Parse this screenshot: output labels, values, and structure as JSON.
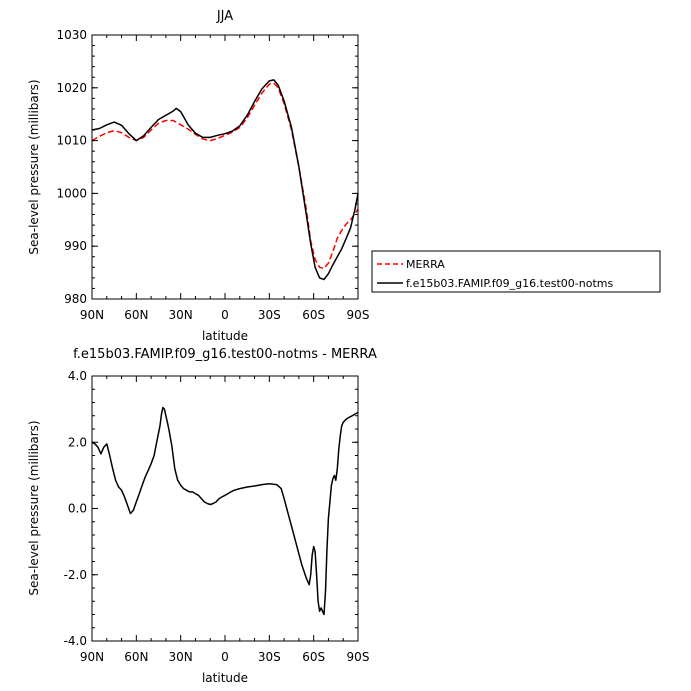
{
  "chart_data": [
    {
      "type": "line",
      "title": "JJA",
      "xlabel": "latitude",
      "ylabel": "Sea-level pressure (millibars)",
      "xlim": [
        90,
        -90
      ],
      "ylim": [
        980,
        1030
      ],
      "x_ticks": [
        90,
        60,
        30,
        0,
        -30,
        -60,
        -90
      ],
      "x_tick_labels": [
        "90N",
        "60N",
        "30N",
        "0",
        "30S",
        "60S",
        "90S"
      ],
      "y_ticks": [
        980,
        990,
        1000,
        1010,
        1020,
        1030
      ],
      "y_tick_labels": [
        "980",
        "990",
        "1000",
        "1010",
        "1020",
        "1030"
      ],
      "legend_position": "right",
      "series": [
        {
          "name": "MERRA",
          "color": "#ff0000",
          "dash": "dashed",
          "points": [
            [
              90,
              1010.0
            ],
            [
              85,
              1010.8
            ],
            [
              80,
              1011.5
            ],
            [
              75,
              1011.9
            ],
            [
              70,
              1011.5
            ],
            [
              65,
              1010.6
            ],
            [
              60,
              1010.0
            ],
            [
              55,
              1010.6
            ],
            [
              50,
              1012.0
            ],
            [
              45,
              1013.3
            ],
            [
              40,
              1013.8
            ],
            [
              35,
              1013.8
            ],
            [
              30,
              1013.0
            ],
            [
              25,
              1012.2
            ],
            [
              20,
              1011.2
            ],
            [
              15,
              1010.3
            ],
            [
              10,
              1010.0
            ],
            [
              5,
              1010.4
            ],
            [
              0,
              1011.0
            ],
            [
              -5,
              1011.6
            ],
            [
              -10,
              1012.5
            ],
            [
              -15,
              1014.3
            ],
            [
              -20,
              1016.7
            ],
            [
              -25,
              1019.0
            ],
            [
              -30,
              1020.7
            ],
            [
              -33,
              1020.9
            ],
            [
              -36,
              1020.0
            ],
            [
              -40,
              1017.0
            ],
            [
              -45,
              1012.0
            ],
            [
              -50,
              1005.0
            ],
            [
              -55,
              997.0
            ],
            [
              -58,
              991.0
            ],
            [
              -61,
              987.5
            ],
            [
              -64,
              986.0
            ],
            [
              -67,
              985.8
            ],
            [
              -70,
              986.8
            ],
            [
              -73,
              989.0
            ],
            [
              -76,
              991.5
            ],
            [
              -79,
              993.0
            ],
            [
              -82,
              994.2
            ],
            [
              -85,
              995.0
            ],
            [
              -88,
              996.2
            ],
            [
              -90,
              997.0
            ]
          ]
        },
        {
          "name": "f.e15b03.FAMIP.f09_g16.test00-notms",
          "color": "#000000",
          "dash": "solid",
          "points": [
            [
              90,
              1012.0
            ],
            [
              85,
              1012.3
            ],
            [
              80,
              1013.0
            ],
            [
              75,
              1013.5
            ],
            [
              70,
              1012.9
            ],
            [
              65,
              1011.3
            ],
            [
              60,
              1010.0
            ],
            [
              55,
              1010.9
            ],
            [
              50,
              1012.5
            ],
            [
              45,
              1014.0
            ],
            [
              40,
              1014.8
            ],
            [
              35,
              1015.6
            ],
            [
              33,
              1016.1
            ],
            [
              30,
              1015.5
            ],
            [
              25,
              1013.0
            ],
            [
              20,
              1011.4
            ],
            [
              15,
              1010.6
            ],
            [
              10,
              1010.6
            ],
            [
              5,
              1011.0
            ],
            [
              0,
              1011.3
            ],
            [
              -5,
              1011.8
            ],
            [
              -10,
              1012.8
            ],
            [
              -15,
              1014.8
            ],
            [
              -20,
              1017.4
            ],
            [
              -25,
              1019.8
            ],
            [
              -30,
              1021.3
            ],
            [
              -33,
              1021.5
            ],
            [
              -36,
              1020.5
            ],
            [
              -40,
              1017.5
            ],
            [
              -45,
              1012.5
            ],
            [
              -50,
              1005.0
            ],
            [
              -55,
              996.0
            ],
            [
              -58,
              990.5
            ],
            [
              -61,
              986.0
            ],
            [
              -64,
              984.0
            ],
            [
              -67,
              983.7
            ],
            [
              -70,
              984.8
            ],
            [
              -73,
              986.5
            ],
            [
              -76,
              988.0
            ],
            [
              -79,
              989.5
            ],
            [
              -82,
              991.5
            ],
            [
              -85,
              993.5
            ],
            [
              -88,
              997.0
            ],
            [
              -90,
              1000.0
            ]
          ]
        }
      ]
    },
    {
      "type": "line",
      "title": "f.e15b03.FAMIP.f09_g16.test00-notms - MERRA",
      "xlabel": "latitude",
      "ylabel": "Sea-level pressure (millibars)",
      "xlim": [
        90,
        -90
      ],
      "ylim": [
        -4.0,
        4.0
      ],
      "x_ticks": [
        90,
        60,
        30,
        0,
        -30,
        -60,
        -90
      ],
      "x_tick_labels": [
        "90N",
        "60N",
        "30N",
        "0",
        "30S",
        "60S",
        "90S"
      ],
      "y_ticks": [
        -4.0,
        -2.0,
        0.0,
        2.0,
        4.0
      ],
      "y_tick_labels": [
        "-4.0",
        "-2.0",
        "0.0",
        "2.0",
        "4.0"
      ],
      "series": [
        {
          "color": "#000000",
          "dash": "solid",
          "points": [
            [
              90,
              2.0
            ],
            [
              88,
              1.95
            ],
            [
              86,
              1.85
            ],
            [
              84,
              1.65
            ],
            [
              82,
              1.85
            ],
            [
              80,
              1.95
            ],
            [
              78,
              1.6
            ],
            [
              76,
              1.2
            ],
            [
              74,
              0.85
            ],
            [
              72,
              0.65
            ],
            [
              70,
              0.55
            ],
            [
              68,
              0.35
            ],
            [
              66,
              0.1
            ],
            [
              64,
              -0.15
            ],
            [
              62,
              -0.05
            ],
            [
              60,
              0.2
            ],
            [
              58,
              0.45
            ],
            [
              56,
              0.7
            ],
            [
              54,
              0.95
            ],
            [
              52,
              1.15
            ],
            [
              50,
              1.35
            ],
            [
              48,
              1.6
            ],
            [
              46,
              2.05
            ],
            [
              44,
              2.5
            ],
            [
              43,
              2.85
            ],
            [
              42,
              3.05
            ],
            [
              41,
              3.0
            ],
            [
              40,
              2.8
            ],
            [
              39,
              2.6
            ],
            [
              38,
              2.4
            ],
            [
              36,
              1.9
            ],
            [
              34,
              1.2
            ],
            [
              32,
              0.85
            ],
            [
              30,
              0.7
            ],
            [
              28,
              0.6
            ],
            [
              26,
              0.55
            ],
            [
              24,
              0.5
            ],
            [
              22,
              0.5
            ],
            [
              20,
              0.45
            ],
            [
              18,
              0.4
            ],
            [
              16,
              0.3
            ],
            [
              14,
              0.2
            ],
            [
              12,
              0.15
            ],
            [
              10,
              0.12
            ],
            [
              8,
              0.15
            ],
            [
              6,
              0.2
            ],
            [
              4,
              0.3
            ],
            [
              2,
              0.35
            ],
            [
              0,
              0.4
            ],
            [
              -2,
              0.45
            ],
            [
              -4,
              0.5
            ],
            [
              -6,
              0.55
            ],
            [
              -10,
              0.6
            ],
            [
              -15,
              0.65
            ],
            [
              -20,
              0.68
            ],
            [
              -25,
              0.72
            ],
            [
              -30,
              0.75
            ],
            [
              -35,
              0.72
            ],
            [
              -38,
              0.6
            ],
            [
              -40,
              0.3
            ],
            [
              -43,
              -0.2
            ],
            [
              -46,
              -0.7
            ],
            [
              -49,
              -1.2
            ],
            [
              -52,
              -1.7
            ],
            [
              -55,
              -2.1
            ],
            [
              -57,
              -2.3
            ],
            [
              -58,
              -2.0
            ],
            [
              -59,
              -1.4
            ],
            [
              -60,
              -1.15
            ],
            [
              -61,
              -1.3
            ],
            [
              -62,
              -2.0
            ],
            [
              -63,
              -2.8
            ],
            [
              -64,
              -3.1
            ],
            [
              -65,
              -3.0
            ],
            [
              -66,
              -3.1
            ],
            [
              -67,
              -3.2
            ],
            [
              -68,
              -2.5
            ],
            [
              -69,
              -1.2
            ],
            [
              -70,
              -0.3
            ],
            [
              -71,
              0.2
            ],
            [
              -72,
              0.7
            ],
            [
              -73,
              0.9
            ],
            [
              -74,
              1.0
            ],
            [
              -75,
              0.85
            ],
            [
              -76,
              1.2
            ],
            [
              -77,
              1.8
            ],
            [
              -78,
              2.2
            ],
            [
              -79,
              2.5
            ],
            [
              -80,
              2.6
            ],
            [
              -82,
              2.7
            ],
            [
              -84,
              2.75
            ],
            [
              -86,
              2.8
            ],
            [
              -88,
              2.85
            ],
            [
              -90,
              2.9
            ]
          ]
        }
      ]
    }
  ]
}
